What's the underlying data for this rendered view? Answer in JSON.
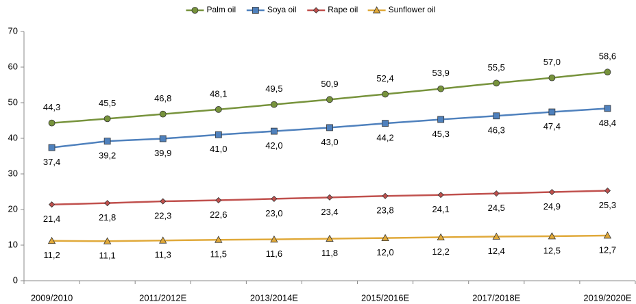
{
  "chart_data": {
    "type": "line",
    "categories": [
      "2009/2010",
      null,
      "2011/2012E",
      null,
      "2013/2014E",
      null,
      "2015/2016E",
      null,
      "2017/2018E",
      null,
      "2019/2020E"
    ],
    "series": [
      {
        "name": "Palm oil",
        "color": "#77933c",
        "marker": "circle",
        "values": [
          44.3,
          45.5,
          46.8,
          48.1,
          49.5,
          50.9,
          52.4,
          53.9,
          55.5,
          57.0,
          58.6
        ],
        "value_labels": [
          "44,3",
          "45,5",
          "46,8",
          "48,1",
          "49,5",
          "50,9",
          "52,4",
          "53,9",
          "55,5",
          "57,0",
          "58,6"
        ]
      },
      {
        "name": "Soya oil",
        "color": "#4f81bd",
        "marker": "square",
        "values": [
          37.4,
          39.2,
          39.9,
          41.0,
          42.0,
          43.0,
          44.2,
          45.3,
          46.3,
          47.4,
          48.4
        ],
        "value_labels": [
          "37,4",
          "39,2",
          "39,9",
          "41,0",
          "42,0",
          "43,0",
          "44,2",
          "45,3",
          "46,3",
          "47,4",
          "48,4"
        ]
      },
      {
        "name": "Rape oil",
        "color": "#c0504d",
        "marker": "diamond",
        "values": [
          21.4,
          21.8,
          22.3,
          22.6,
          23.0,
          23.4,
          23.8,
          24.1,
          24.5,
          24.9,
          25.3
        ],
        "value_labels": [
          "21,4",
          "21,8",
          "22,3",
          "22,6",
          "23,0",
          "23,4",
          "23,8",
          "24,1",
          "24,5",
          "24,9",
          "25,3"
        ]
      },
      {
        "name": "Sunflower oil",
        "color": "#e0a93a",
        "marker": "triangle",
        "values": [
          11.2,
          11.1,
          11.3,
          11.5,
          11.6,
          11.8,
          12.0,
          12.2,
          12.4,
          12.5,
          12.7
        ],
        "value_labels": [
          "11,2",
          "11,1",
          "11,3",
          "11,5",
          "11,6",
          "11,8",
          "12,0",
          "12,2",
          "12,4",
          "12,5",
          "12,7"
        ]
      }
    ],
    "ylim": [
      0,
      70
    ],
    "yticks": [
      0,
      10,
      20,
      30,
      40,
      50,
      60,
      70
    ],
    "grid": false,
    "legend": "top"
  }
}
